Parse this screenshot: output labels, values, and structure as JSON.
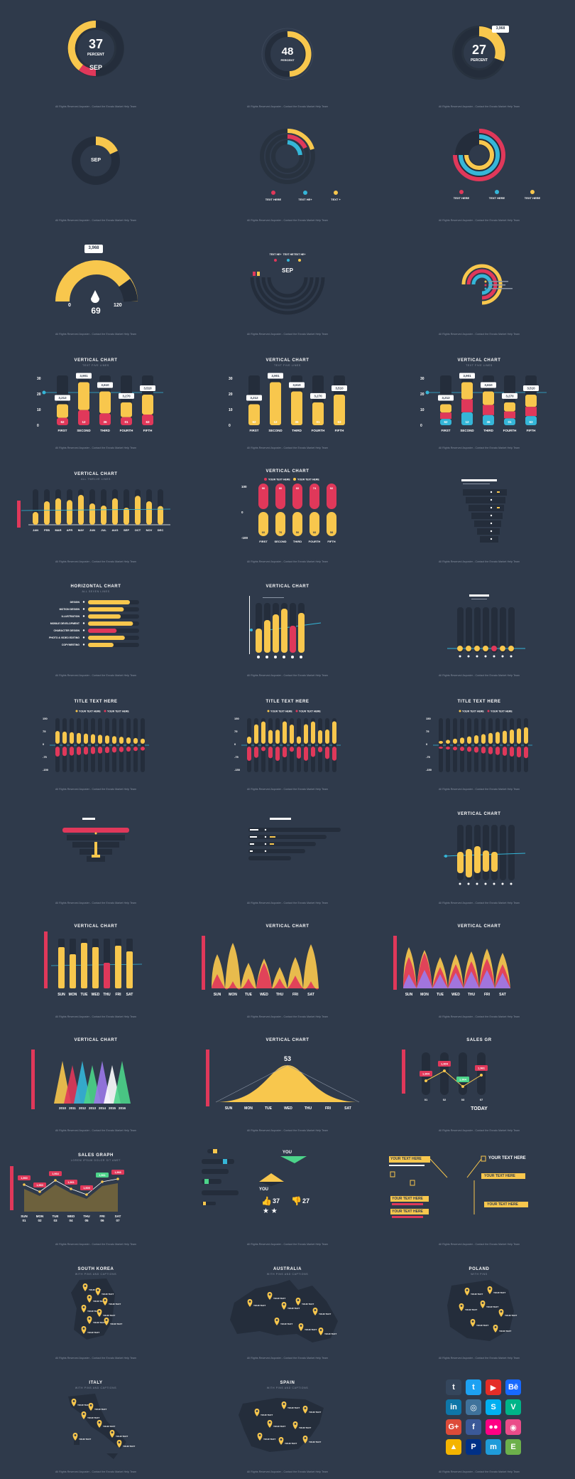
{
  "colors": {
    "bg": "#2f3a4b",
    "track": "#242d3b",
    "yellow": "#f8c74d",
    "red": "#e0385a",
    "blue": "#35b6d8",
    "green": "#4cd48a",
    "purple": "#9b79e8",
    "dark": "#1e2633"
  },
  "footer": "All Rights Reserved Asposter - Contact the Envato Market Help Team",
  "donuts": [
    {
      "value": "37",
      "unit": "PERCENT",
      "label": "SEP",
      "percent": 37
    },
    {
      "value": "48",
      "unit": "PERCENT",
      "percent": 48
    },
    {
      "value": "27",
      "unit": "PERCENT",
      "badge": "3,968",
      "percent": 27
    }
  ],
  "row2": {
    "sep": "SEP",
    "legend": [
      "TEXT HERE",
      "TEXT HE+",
      "TEXT +"
    ],
    "legend3": [
      "TEXT HERE",
      "TEXT HERE",
      "TEXT HERE"
    ]
  },
  "gauge": {
    "badge": "3,968",
    "min": "0",
    "max": "120",
    "value": "69"
  },
  "arcs": {
    "legend": [
      "TEXT HE+",
      "TEXT HE",
      "TEXT HE+"
    ],
    "label": "SEP"
  },
  "vchart": {
    "title": "VERTICAL CHART",
    "sub": "TEXT FIVE LINES",
    "categories": [
      "FIRST",
      "SECOND",
      "THIRD",
      "FOURTH",
      "FIFTH"
    ],
    "yticks": [
      "30",
      "20",
      "10",
      "0"
    ],
    "values": [
      3212,
      3901,
      3610,
      3270,
      3510
    ],
    "badges": [
      "3,212",
      "3,901",
      "3,610",
      "3,270",
      "3,510"
    ],
    "inner": [
      "62",
      "12",
      "36",
      "01",
      "63"
    ]
  },
  "months": {
    "title": "VERTICAL CHART",
    "sub": "ALL TWELVE LINES",
    "labels": [
      "JAN",
      "FEB",
      "MAR",
      "APR",
      "MAY",
      "JUN",
      "JUL",
      "AUG",
      "SEP",
      "OCT",
      "NOV",
      "DEC"
    ],
    "values": [
      30,
      55,
      62,
      58,
      70,
      50,
      45,
      62,
      40,
      68,
      55,
      44
    ]
  },
  "pill": {
    "title": "VERTICAL CHART",
    "legend": [
      "YOUR TEXT HERE",
      "YOUR TEXT HERE"
    ],
    "cats": [
      "FIRST",
      "SECOND",
      "THIRD",
      "FOURTH",
      "FIFTH"
    ],
    "yticks": [
      "100",
      "0",
      "-100"
    ],
    "top": [
      "90",
      "80",
      "60",
      "74",
      "92"
    ],
    "bottom": [
      "60",
      "76",
      "50",
      "66",
      "58"
    ]
  },
  "horiz": {
    "title": "HORIZONTAL CHART",
    "sub": "ALL SEVEN LINES",
    "items": [
      "DESIGN",
      "MOTION DESIGN",
      "ILLUSTRATION",
      "MOBILE DEVELOPMENT",
      "CHARACTER DESIGN",
      "PHOTO & VIDEO EDITING",
      "COPYWRITING"
    ],
    "values": [
      82,
      70,
      64,
      88,
      56,
      72,
      50
    ]
  },
  "footer_chart": {
    "title": "VERTICAL CHART",
    "days": [
      "SUN",
      "MON",
      "TUE",
      "WED",
      "THU",
      "FRI",
      "SAT"
    ],
    "years": [
      "2010",
      "2011",
      "2012",
      "2013",
      "2014",
      "2015",
      "2016"
    ]
  },
  "wave": {
    "title": "TITLE TEXT HERE",
    "legend": [
      "YOUR TEXT HERE",
      "YOUR TEXT HERE"
    ]
  },
  "bell": {
    "title": "VERTICAL CHART",
    "value": "53"
  },
  "sales": {
    "title": "SALES GRAPH",
    "sub": "LOREM IPSUM DOLOR SIT AMET",
    "days": [
      "SUN 01",
      "MON 02",
      "TUE 03",
      "WED 04",
      "THU 05",
      "FRI 06",
      "SAT 07"
    ],
    "badges": [
      "1,960",
      "1,960",
      "1,964",
      "1,961",
      "1,909",
      "1,961",
      "1,966"
    ]
  },
  "salesb": {
    "title": "SALES GR",
    "today": "TODAY",
    "badges": [
      "1,904",
      "1,904",
      "1,964",
      "1,961"
    ],
    "x": [
      "01",
      "02",
      "03",
      "07"
    ]
  },
  "social": {
    "likes": "37",
    "dislikes": "27",
    "you": "YOU"
  },
  "textboxes": {
    "items": [
      "YOUR TEXT HERE",
      "YOUR TEXT HERE",
      "YOUR TEXT HERE",
      "YOUR TEXT HERE",
      "YOUR TEXT HERE",
      "YOUR TEXT HERE"
    ]
  },
  "maps": [
    {
      "title": "SOUTH KOREA",
      "sub": "WITH PINS AND CAPTIONS"
    },
    {
      "title": "AUSTRALIA",
      "sub": "WITH PINS AND CAPTIONS"
    },
    {
      "title": "POLAND",
      "sub": "WITH PINS"
    },
    {
      "title": "ITALY",
      "sub": "WITH PINS AND CAPTIONS"
    },
    {
      "title": "SPAIN",
      "sub": "WITH PINS AND CAPTIONS"
    }
  ],
  "pin_caption": "YOUR TEXT",
  "social_icons": [
    {
      "name": "tumblr",
      "glyph": "t",
      "color": "#35465c"
    },
    {
      "name": "twitter",
      "glyph": "t",
      "color": "#1da1f2"
    },
    {
      "name": "youtube",
      "glyph": "▶",
      "color": "#e52d27"
    },
    {
      "name": "behance",
      "glyph": "Bē",
      "color": "#1769ff"
    },
    {
      "name": "linkedin",
      "glyph": "in",
      "color": "#0e76a8"
    },
    {
      "name": "instagram",
      "glyph": "◎",
      "color": "#3f729b"
    },
    {
      "name": "skype",
      "glyph": "S",
      "color": "#00aff0"
    },
    {
      "name": "vine",
      "glyph": "V",
      "color": "#00b488"
    },
    {
      "name": "google-plus",
      "glyph": "G+",
      "color": "#dd4b39"
    },
    {
      "name": "facebook",
      "glyph": "f",
      "color": "#3b5998"
    },
    {
      "name": "flickr",
      "glyph": "●●",
      "color": "#ff0084"
    },
    {
      "name": "dribbble",
      "glyph": "◉",
      "color": "#ea4c89"
    },
    {
      "name": "google-drive",
      "glyph": "▲",
      "color": "#f4b400"
    },
    {
      "name": "paypal",
      "glyph": "P",
      "color": "#003087"
    },
    {
      "name": "myspace",
      "glyph": "m",
      "color": "#1f9bd9"
    },
    {
      "name": "evernote",
      "glyph": "E",
      "color": "#6cb04b"
    }
  ]
}
